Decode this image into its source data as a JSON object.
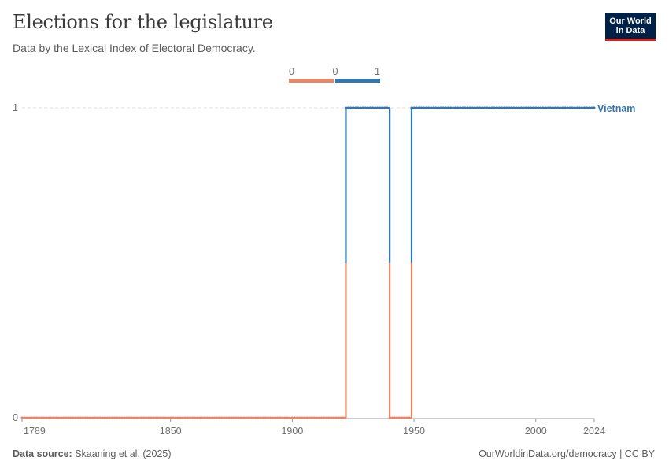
{
  "title": "Elections for the legislature",
  "subtitle": "Data by the Lexical Index of Electoral Democracy.",
  "logo": {
    "line1": "Our World",
    "line2": "in Data"
  },
  "footer": {
    "source_label": "Data source:",
    "source_text": "Skaaning et al. (2025)",
    "url_text": "OurWorldinData.org/democracy | CC BY"
  },
  "colors": {
    "low": "#e8866a",
    "high": "#3376b0",
    "grid": "#dddddd",
    "axis": "#999999"
  },
  "chart_data": {
    "type": "line",
    "title": "Elections for the legislature",
    "subtitle": "Data by the Lexical Index of Electoral Democracy.",
    "legend": {
      "type": "color-scale",
      "position": "top-center",
      "stops": [
        "0",
        "0",
        "1"
      ]
    },
    "x_ticks": [
      1789,
      1850,
      1900,
      1950,
      2000,
      2024
    ],
    "y_ticks": [
      0,
      1
    ],
    "xlim": [
      1789,
      2024
    ],
    "ylim": [
      0,
      1
    ],
    "grid": "horizontal-dashed",
    "series": [
      {
        "name": "Vietnam",
        "segments": [
          {
            "x_start": 1789,
            "x_end": 1921,
            "value": 0
          },
          {
            "x_start": 1922,
            "x_end": 1939,
            "value": 1
          },
          {
            "x_start": 1940,
            "x_end": 1948,
            "value": 0
          },
          {
            "x_start": 1949,
            "x_end": 2024,
            "value": 1
          }
        ]
      }
    ]
  }
}
